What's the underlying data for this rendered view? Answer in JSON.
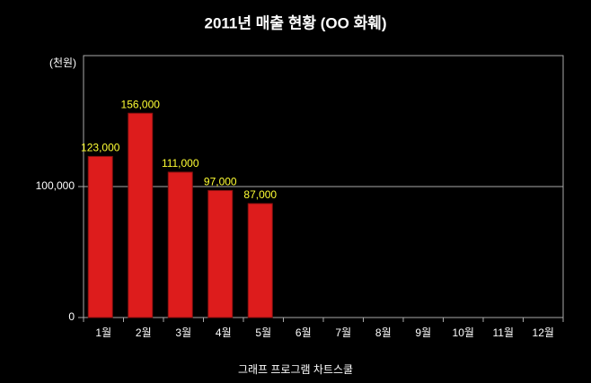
{
  "chart_data": {
    "type": "bar",
    "title": "2011년 매출 현황 (OO 화훼)",
    "ylabel": "(천원)",
    "xlabel": "그래프 프로그램 차트스쿨",
    "categories": [
      "1월",
      "2월",
      "3월",
      "4월",
      "5월",
      "6월",
      "7월",
      "8월",
      "9월",
      "10월",
      "11월",
      "12월"
    ],
    "values": [
      123000,
      156000,
      111000,
      97000,
      87000,
      null,
      null,
      null,
      null,
      null,
      null,
      null
    ],
    "value_labels": [
      "123,000",
      "156,000",
      "111,000",
      "97,000",
      "87,000",
      null,
      null,
      null,
      null,
      null,
      null,
      null
    ],
    "color": "#dd1c1c",
    "label_color": "#ffff33",
    "ylim": [
      0,
      200000
    ],
    "yticks": [
      0,
      {
        "value": 100000,
        "label": "100,000"
      }
    ],
    "grid": true
  }
}
